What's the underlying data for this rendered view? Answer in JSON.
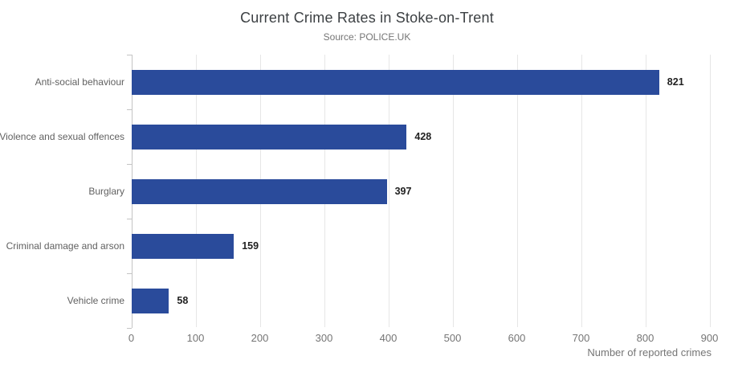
{
  "chart_data": {
    "type": "bar",
    "orientation": "horizontal",
    "title": "Current Crime Rates in Stoke-on-Trent",
    "subtitle": "Source: POLICE.UK",
    "xlabel": "Number of reported crimes",
    "ylabel": "",
    "categories": [
      "Anti-social behaviour",
      "Violence and sexual offences",
      "Burglary",
      "Criminal damage and arson",
      "Vehicle crime"
    ],
    "values": [
      821,
      428,
      397,
      159,
      58
    ],
    "xlim": [
      0,
      900
    ],
    "xticks": [
      0,
      100,
      200,
      300,
      400,
      500,
      600,
      700,
      800,
      900
    ],
    "grid": true,
    "legend": "none",
    "value_labels_shown": true,
    "colors": {
      "bar": "#2a4b9b",
      "title": "#3c4043",
      "subtitle": "#757575",
      "category_label": "#616161",
      "tick_label": "#757575",
      "value_label": "#212121",
      "gridline": "#e6e6e6",
      "axis_line": "#c4c4c4"
    }
  }
}
